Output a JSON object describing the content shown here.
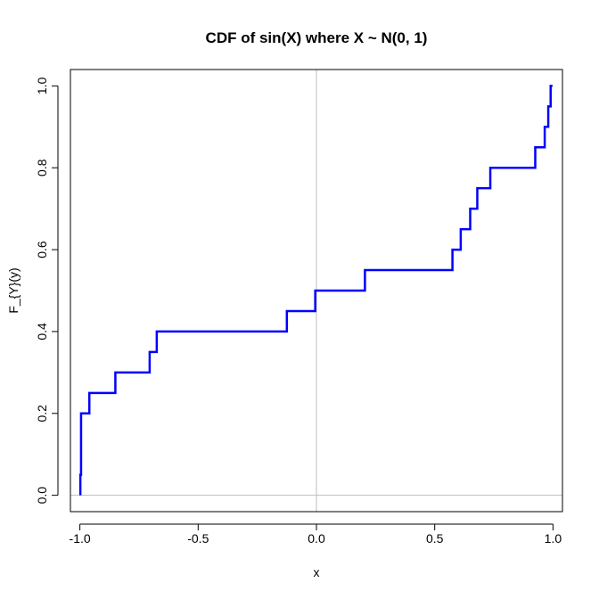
{
  "chart_data": {
    "type": "line",
    "step": true,
    "title": "CDF of sin(X) where X ~ N(0, 1)",
    "xlabel": "x",
    "ylabel": "F_{Y}(y)",
    "xlim": [
      -1.04,
      1.04
    ],
    "ylim": [
      -0.04,
      1.04
    ],
    "xticks": [
      -1.0,
      -0.5,
      0.0,
      0.5,
      1.0
    ],
    "xtick_labels": [
      "-1.0",
      "-0.5",
      "0.0",
      "0.5",
      "1.0"
    ],
    "yticks": [
      0.0,
      0.2,
      0.4,
      0.6,
      0.8,
      1.0
    ],
    "ytick_labels": [
      "0.0",
      "0.2",
      "0.4",
      "0.6",
      "0.8",
      "1.0"
    ],
    "reference_lines": {
      "vertical_x": 0,
      "horizontal_y": 0
    },
    "series": [
      {
        "color": "#0000ff",
        "x": [
          -0.998,
          -0.995,
          -0.96,
          -0.85,
          -0.705,
          -0.675,
          -0.125,
          -0.005,
          0.205,
          0.575,
          0.61,
          0.65,
          0.68,
          0.735,
          0.925,
          0.965,
          0.98,
          0.99
        ],
        "y": [
          0.05,
          0.2,
          0.25,
          0.3,
          0.35,
          0.4,
          0.45,
          0.5,
          0.55,
          0.6,
          0.65,
          0.7,
          0.75,
          0.8,
          0.85,
          0.9,
          0.95,
          1.0
        ],
        "x_start": -0.998,
        "y_start": 0.0,
        "x_end": 0.998
      }
    ],
    "colors": {
      "line": "#0000ff",
      "reference": "#bebebe",
      "axis": "#000000"
    }
  }
}
